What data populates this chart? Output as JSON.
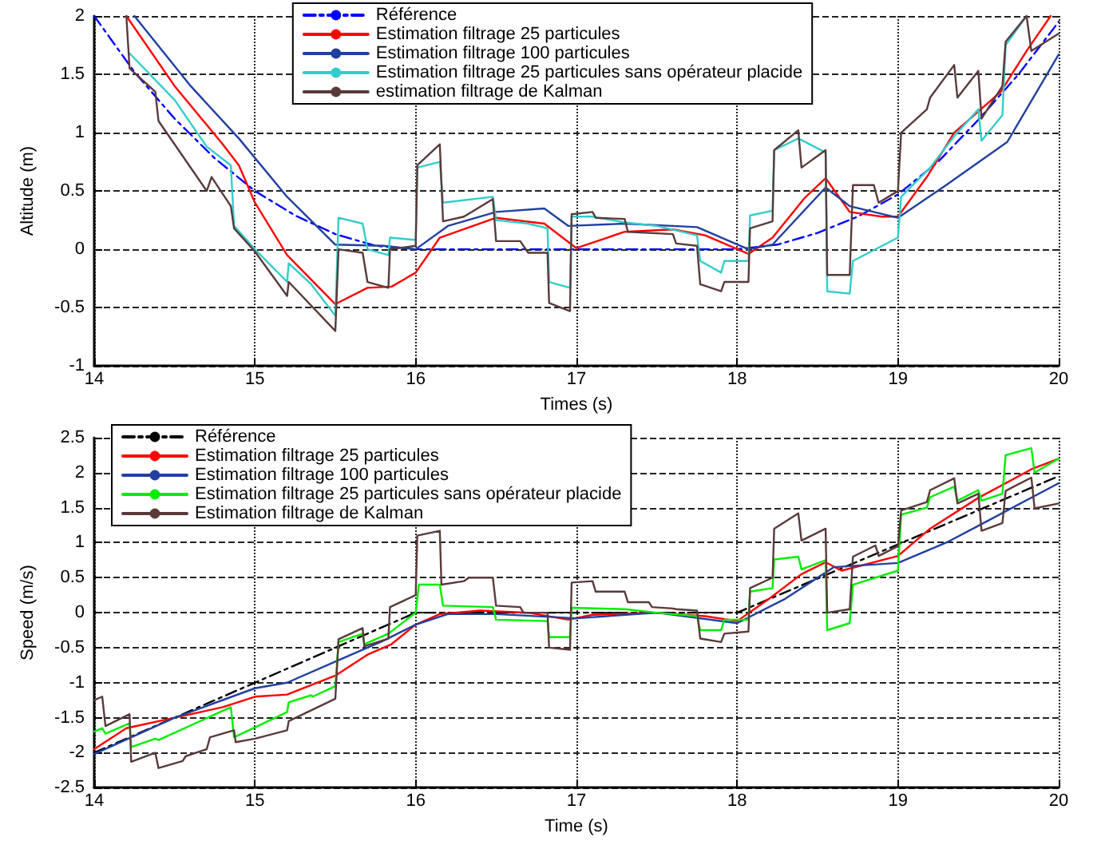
{
  "chart_data": [
    {
      "type": "line",
      "xlabel": "Times (s)",
      "ylabel": "Altitude (m)",
      "xlim": [
        14,
        20
      ],
      "xticks": [
        14,
        15,
        16,
        17,
        18,
        19,
        20
      ],
      "ylim": [
        -1,
        2
      ],
      "yticks": [
        -1,
        -0.5,
        0,
        0.5,
        1,
        1.5,
        2
      ],
      "grid": true,
      "legend": "top",
      "series": [
        {
          "name": "Référence",
          "color": "#0000ff",
          "line_style": "dashed",
          "x": [
            14,
            14.25,
            14.5,
            14.75,
            15,
            15.25,
            15.5,
            15.75,
            16,
            17,
            18,
            18.25,
            18.5,
            18.75,
            19,
            19.25,
            19.5,
            19.75,
            20
          ],
          "values": [
            2,
            1.52,
            1.12,
            0.78,
            0.5,
            0.29,
            0.13,
            0.03,
            0,
            0,
            0,
            0.04,
            0.14,
            0.28,
            0.47,
            0.75,
            1.11,
            1.5,
            1.95
          ]
        },
        {
          "name": "Estimation filtrage 25 particules",
          "color": "#ff0000",
          "x": [
            14.2,
            14.5,
            14.8,
            14.9,
            15,
            15.2,
            15.5,
            15.7,
            15.85,
            16,
            16.15,
            16.5,
            16.8,
            17,
            17.3,
            17.6,
            17.8,
            18.07,
            18.22,
            18.42,
            18.55,
            18.7,
            18.9,
            19,
            19.18,
            19.35,
            19.64,
            19.8,
            19.95
          ],
          "values": [
            2,
            1.4,
            0.9,
            0.72,
            0.4,
            -0.05,
            -0.47,
            -0.33,
            -0.32,
            -0.2,
            0.1,
            0.27,
            0.22,
            0.01,
            0.15,
            0.17,
            0.12,
            -0.04,
            0.1,
            0.44,
            0.61,
            0.32,
            0.28,
            0.28,
            0.62,
            1,
            1.35,
            1.7,
            2
          ]
        },
        {
          "name": "Estimation filtrage 100 particules",
          "color": "#2040a0",
          "x": [
            14.25,
            14.6,
            14.9,
            15.2,
            15.5,
            15.8,
            16,
            16.2,
            16.5,
            16.8,
            16.95,
            17.3,
            17.75,
            18.07,
            18.22,
            18.55,
            18.7,
            19,
            19.3,
            19.68,
            20
          ],
          "values": [
            2,
            1.4,
            0.95,
            0.45,
            0.04,
            0.03,
            0,
            0.2,
            0.32,
            0.35,
            0.2,
            0.22,
            0.19,
            0,
            0.04,
            0.53,
            0.37,
            0.27,
            0.55,
            0.92,
            1.67
          ]
        },
        {
          "name": "Estimation filtrage 25 particules sans opérateur placide",
          "color": "#33cccc",
          "x": [
            14.22,
            14.5,
            14.7,
            14.85,
            14.87,
            15,
            15.2,
            15.21,
            15.35,
            15.5,
            15.52,
            15.67,
            15.7,
            15.83,
            15.84,
            16,
            16.01,
            16.15,
            16.17,
            16.48,
            16.5,
            16.7,
            16.82,
            16.83,
            16.96,
            16.97,
            17.1,
            17.3,
            17.5,
            17.75,
            17.77,
            17.9,
            17.92,
            18.07,
            18.08,
            18.22,
            18.23,
            18.38,
            18.55,
            18.56,
            18.7,
            18.72,
            19,
            19.02,
            19.2,
            19.35,
            19.5,
            19.52,
            19.65,
            19.67,
            19.8
          ],
          "values": [
            1.68,
            1.28,
            0.88,
            0.72,
            0.2,
            0,
            -0.28,
            -0.12,
            -0.3,
            -0.57,
            0.27,
            0.22,
            0,
            -0.05,
            0.1,
            0.08,
            0.7,
            0.75,
            0.4,
            0.45,
            0.25,
            0.22,
            0.18,
            -0.28,
            -0.33,
            0.28,
            0.28,
            0.23,
            0.2,
            0.12,
            -0.1,
            -0.2,
            -0.1,
            -0.1,
            0.29,
            0.33,
            0.85,
            0.95,
            0.83,
            -0.36,
            -0.38,
            -0.1,
            0.1,
            0.45,
            0.7,
            0.97,
            1.2,
            0.93,
            1.15,
            1.75,
            2
          ]
        },
        {
          "name": "estimation filtrage de Kalman",
          "color": "#5a3a3a",
          "x": [
            14.2,
            14.22,
            14.38,
            14.4,
            14.55,
            14.7,
            14.73,
            14.85,
            14.87,
            15,
            15.2,
            15.21,
            15.5,
            15.52,
            15.67,
            15.7,
            15.83,
            15.84,
            16,
            16.01,
            16.15,
            16.17,
            16.3,
            16.48,
            16.5,
            16.65,
            16.7,
            16.82,
            16.83,
            16.96,
            16.97,
            17.1,
            17.12,
            17.3,
            17.32,
            17.6,
            17.62,
            17.75,
            17.77,
            17.9,
            17.92,
            18.07,
            18.08,
            18.22,
            18.23,
            18.38,
            18.4,
            18.55,
            18.56,
            18.7,
            18.72,
            18.85,
            18.88,
            19,
            19.02,
            19.18,
            19.2,
            19.35,
            19.37,
            19.5,
            19.52,
            19.65,
            19.67,
            19.8,
            19.83,
            20
          ],
          "values": [
            2,
            1.55,
            1.35,
            1.1,
            0.8,
            0.5,
            0.62,
            0.37,
            0.18,
            -0.02,
            -0.4,
            -0.28,
            -0.7,
            0,
            -0.03,
            -0.28,
            -0.33,
            0,
            0.03,
            0.72,
            0.9,
            0.24,
            0.28,
            0.43,
            0.07,
            0.07,
            -0.03,
            -0.03,
            -0.46,
            -0.53,
            0.3,
            0.32,
            0.27,
            0.26,
            0.15,
            0.13,
            0.05,
            0.03,
            -0.3,
            -0.36,
            -0.28,
            -0.28,
            0.18,
            0.24,
            0.85,
            1.02,
            0.7,
            0.85,
            -0.22,
            -0.22,
            0.55,
            0.55,
            0.4,
            0.5,
            1,
            1.2,
            1.3,
            1.58,
            1.3,
            1.53,
            1.12,
            1.4,
            1.78,
            2,
            1.7,
            1.85
          ]
        }
      ]
    },
    {
      "type": "line",
      "xlabel": "Time (s)",
      "ylabel": "Speed (m/s)",
      "xlim": [
        14,
        20
      ],
      "xticks": [
        14,
        15,
        16,
        17,
        18,
        19,
        20
      ],
      "ylim": [
        -2.5,
        2.5
      ],
      "yticks": [
        -2.5,
        -2,
        -1.5,
        -1,
        -0.5,
        0,
        0.5,
        1,
        1.5,
        2,
        2.5
      ],
      "grid": true,
      "legend": "top left",
      "series": [
        {
          "name": "Référence",
          "color": "#000000",
          "line_style": "dashed",
          "x": [
            14,
            16,
            18,
            20
          ],
          "values": [
            -2,
            0,
            0,
            1.95
          ]
        },
        {
          "name": "Estimation filtrage 25 particules",
          "color": "#ff0000",
          "x": [
            14,
            14.2,
            14.5,
            14.8,
            15,
            15.2,
            15.5,
            15.7,
            15.85,
            16,
            16.15,
            16.4,
            16.7,
            16.95,
            17.1,
            17.5,
            17.8,
            18,
            18.2,
            18.4,
            18.55,
            18.65,
            19,
            19.2,
            19.5,
            19.84,
            20
          ],
          "values": [
            -1.95,
            -1.65,
            -1.5,
            -1.35,
            -1.2,
            -1.17,
            -0.9,
            -0.6,
            -0.45,
            -0.17,
            -0.02,
            0.03,
            0,
            -0.1,
            -0.03,
            0,
            -0.05,
            -0.12,
            0.2,
            0.55,
            0.72,
            0.6,
            0.81,
            1.2,
            1.64,
            2.06,
            2.2
          ]
        },
        {
          "name": "Estimation filtrage 100 particules",
          "color": "#2040a0",
          "x": [
            14,
            14.5,
            15,
            15.2,
            15.5,
            15.8,
            16,
            16.2,
            16.5,
            17,
            17.5,
            18,
            18.3,
            18.6,
            19,
            19.3,
            19.5,
            20
          ],
          "values": [
            -2.02,
            -1.5,
            -1.08,
            -1,
            -0.7,
            -0.4,
            -0.17,
            -0.02,
            -0.02,
            -0.08,
            0,
            -0.15,
            0.2,
            0.65,
            0.71,
            1,
            1.24,
            1.85
          ]
        },
        {
          "name": "Estimation filtrage 25 particules sans opérateur placide",
          "color": "#00ee00",
          "x": [
            14,
            14.05,
            14.07,
            14.22,
            14.23,
            14.38,
            14.4,
            14.85,
            14.87,
            15.2,
            15.21,
            15.35,
            15.36,
            15.5,
            15.52,
            15.67,
            15.68,
            15.83,
            16,
            16.02,
            16.15,
            16.17,
            16.48,
            16.5,
            16.82,
            16.83,
            16.96,
            16.97,
            17.3,
            17.5,
            17.75,
            17.77,
            17.9,
            17.92,
            18.07,
            18.08,
            18.22,
            18.23,
            18.38,
            18.4,
            18.55,
            18.56,
            18.7,
            18.72,
            19,
            19.02,
            19.18,
            19.2,
            19.35,
            19.37,
            19.5,
            19.52,
            19.65,
            19.67,
            19.83,
            19.85,
            20
          ],
          "values": [
            -1.7,
            -1.65,
            -1.73,
            -1.58,
            -1.92,
            -1.8,
            -1.82,
            -1.35,
            -1.78,
            -1.42,
            -1.28,
            -1.18,
            -1.2,
            -1.05,
            -0.42,
            -0.3,
            -0.45,
            -0.3,
            0,
            0.4,
            0.4,
            0.1,
            0.08,
            -0.1,
            -0.12,
            -0.35,
            -0.35,
            0.07,
            0.05,
            0,
            -0.05,
            -0.25,
            -0.25,
            -0.1,
            -0.1,
            0.3,
            0.35,
            0.76,
            0.8,
            0.62,
            0.75,
            -0.25,
            -0.15,
            0.4,
            0.6,
            1.4,
            1.5,
            1.65,
            1.8,
            1.6,
            1.75,
            1.6,
            1.7,
            2.25,
            2.35,
            2,
            2.2
          ]
        },
        {
          "name": "Estimation filtrage de Kalman",
          "color": "#5a3a3a",
          "x": [
            14,
            14.05,
            14.07,
            14.22,
            14.23,
            14.38,
            14.4,
            14.55,
            14.57,
            14.7,
            14.72,
            14.87,
            14.88,
            15,
            15.2,
            15.21,
            15.5,
            15.52,
            15.67,
            15.68,
            15.83,
            15.84,
            16,
            16.01,
            16.15,
            16.16,
            16.3,
            16.33,
            16.48,
            16.5,
            16.65,
            16.67,
            16.82,
            16.83,
            16.96,
            16.97,
            17.1,
            17.12,
            17.3,
            17.32,
            17.45,
            17.47,
            17.6,
            17.62,
            17.75,
            17.77,
            17.9,
            17.92,
            18.07,
            18.08,
            18.22,
            18.23,
            18.38,
            18.4,
            18.55,
            18.56,
            18.7,
            18.72,
            18.86,
            18.88,
            19,
            19.02,
            19.18,
            19.2,
            19.35,
            19.37,
            19.5,
            19.52,
            19.65,
            19.67,
            19.83,
            19.85,
            20
          ],
          "values": [
            -1.25,
            -1.2,
            -1.62,
            -1.45,
            -2.13,
            -2,
            -2.22,
            -2.12,
            -2.05,
            -1.95,
            -1.78,
            -1.68,
            -1.85,
            -1.8,
            -1.68,
            -1.55,
            -1.23,
            -0.38,
            -0.22,
            -0.48,
            -0.37,
            0.08,
            0.25,
            1.1,
            1.17,
            0.4,
            0.45,
            0.5,
            0.5,
            0.1,
            0.08,
            0,
            0,
            -0.5,
            -0.53,
            0.43,
            0.45,
            0.3,
            0.3,
            0.15,
            0.15,
            0.08,
            0.06,
            0.05,
            0.03,
            -0.37,
            -0.42,
            -0.3,
            -0.27,
            0.35,
            0.5,
            1.2,
            1.42,
            1.03,
            1.2,
            0,
            0.05,
            0.8,
            0.96,
            0.81,
            0.95,
            1.46,
            1.58,
            1.75,
            1.92,
            1.56,
            1.7,
            1.17,
            1.28,
            1.74,
            1.93,
            1.49,
            1.56
          ]
        }
      ]
    }
  ]
}
